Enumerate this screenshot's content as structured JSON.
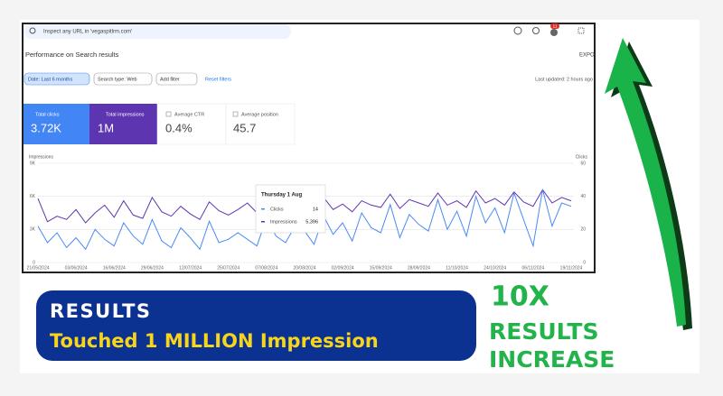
{
  "search_placeholder": "Inspect any URL in 'vegaspitlrm.com'",
  "notification_count": "11",
  "page_title": "Performance on Search results",
  "export": "EXPO",
  "filters": [
    "Date: Last 6 months",
    "Search type: Web",
    "Add filter"
  ],
  "reset": "Reset filters",
  "last_updated": "Last updated: 2 hours ago",
  "metrics": [
    {
      "label": "Total clicks",
      "value": "3.72K"
    },
    {
      "label": "Total impressions",
      "value": "1M"
    },
    {
      "label": "Average CTR",
      "value": "0.4%"
    },
    {
      "label": "Average position",
      "value": "45.7"
    }
  ],
  "chart_data": {
    "type": "line",
    "y_label": "Impressions",
    "y2_label": "Clicks",
    "categories": [
      "21/05/2024",
      null,
      null,
      null,
      "03/06/2024",
      null,
      null,
      null,
      "16/06/2024",
      null,
      null,
      null,
      "29/06/2024",
      null,
      null,
      null,
      "12/07/2024",
      null,
      null,
      null,
      "25/07/2024",
      null,
      null,
      null,
      "07/08/2024",
      null,
      null,
      null,
      "20/08/2024",
      null,
      null,
      null,
      "02/09/2024",
      null,
      null,
      null,
      "15/09/2024",
      null,
      null,
      null,
      "28/09/2024",
      null,
      null,
      null,
      "11/10/2024",
      null,
      null,
      null,
      "24/10/2024",
      null,
      null,
      null,
      "06/11/2024",
      null,
      null,
      null,
      "19/11/2024"
    ],
    "series": [
      {
        "name": "Impressions",
        "color": "#5e35b1",
        "values": [
          5800,
          3700,
          4200,
          3900,
          4800,
          3600,
          4500,
          5200,
          4100,
          5600,
          4300,
          4000,
          5900,
          4600,
          4200,
          5100,
          4400,
          3900,
          5500,
          4700,
          4300,
          4800,
          5396,
          4500,
          5800,
          4600,
          4200,
          5300,
          5000,
          4700,
          5900,
          4800,
          5300,
          4600,
          5600,
          5200,
          5000,
          6200,
          4900,
          5700,
          5400,
          5100,
          6300,
          5200,
          5600,
          5000,
          6500,
          5400,
          5800,
          5200,
          6400,
          5500,
          5100,
          6600,
          5400,
          5900,
          5600
        ]
      },
      {
        "name": "Clicks",
        "color": "#4a8af4",
        "axis": "y2",
        "values": [
          22,
          12,
          18,
          9,
          15,
          8,
          20,
          14,
          10,
          24,
          16,
          11,
          26,
          13,
          9,
          21,
          15,
          8,
          25,
          12,
          14,
          18,
          14,
          10,
          27,
          16,
          12,
          22,
          19,
          11,
          28,
          17,
          24,
          13,
          30,
          21,
          18,
          35,
          15,
          29,
          23,
          19,
          38,
          20,
          31,
          16,
          40,
          24,
          33,
          18,
          42,
          26,
          10,
          44,
          22,
          36,
          34
        ]
      }
    ],
    "ylim": [
      0,
      9000
    ],
    "yticks": [
      0,
      {
        "value": 3000,
        "label": "3K"
      },
      {
        "value": 6000,
        "label": "6K"
      },
      {
        "value": 9000,
        "label": "9K"
      }
    ],
    "y2lim": [
      0,
      60
    ],
    "y2ticks": [
      0,
      20,
      40,
      60
    ],
    "grid": true
  },
  "tooltip": {
    "date": "Thursday 1 Aug",
    "rows": [
      {
        "name": "Clicks",
        "value": "14"
      },
      {
        "name": "Impressions",
        "value": "5,396"
      }
    ]
  },
  "banner": {
    "heading": "RESULTS",
    "text": "Touched 1 MILLION Impression"
  },
  "callout": [
    "10X",
    "RESULTS",
    "INCREASE"
  ]
}
